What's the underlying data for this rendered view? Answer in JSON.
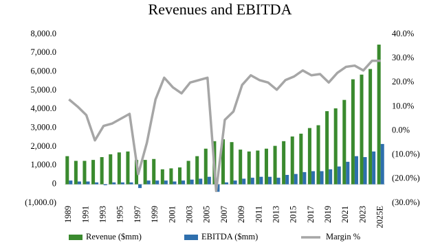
{
  "chart_data": {
    "type": "bar_line",
    "title": "Revenues and EBITDA",
    "categories": [
      "1989",
      null,
      "1991",
      null,
      "1993",
      null,
      "1995",
      null,
      "1997",
      null,
      "1999",
      null,
      "2001",
      null,
      "2003",
      null,
      "2005",
      null,
      "2007",
      null,
      "2009",
      null,
      "2011",
      null,
      "2013",
      null,
      "2015",
      null,
      "2017",
      null,
      "2019",
      null,
      "2021",
      null,
      "2023",
      null,
      "2025E"
    ],
    "series": [
      {
        "name": "Revenue ($mm)",
        "type": "bar",
        "color": "#3a8a2e",
        "values": [
          1500,
          1250,
          1250,
          1300,
          1450,
          1600,
          1700,
          1750,
          1300,
          1300,
          1350,
          800,
          850,
          900,
          1250,
          1500,
          1900,
          2300,
          2400,
          2250,
          1850,
          1750,
          1800,
          1900,
          2050,
          2300,
          2550,
          2700,
          3000,
          3150,
          3900,
          4050,
          4500,
          5600,
          5850,
          6150,
          7450
        ]
      },
      {
        "name": "EBITDA ($mm)",
        "type": "bar",
        "color": "#2e6fad",
        "values": [
          200,
          150,
          150,
          100,
          -50,
          100,
          100,
          100,
          -200,
          200,
          200,
          200,
          150,
          200,
          250,
          300,
          400,
          -400,
          100,
          200,
          300,
          350,
          400,
          400,
          350,
          500,
          550,
          650,
          700,
          700,
          800,
          950,
          1200,
          1500,
          1450,
          1750,
          2150
        ]
      },
      {
        "name": "Margin %",
        "type": "line",
        "axis": "y2",
        "color": "#a6a6a6",
        "values": [
          13,
          10,
          6.5,
          -4,
          2,
          3,
          5,
          7,
          -18,
          -5,
          13,
          22,
          18,
          15.5,
          20,
          21,
          22,
          -25,
          4.5,
          8,
          19,
          23,
          21,
          20,
          17,
          21,
          22.5,
          25,
          23,
          23.5,
          20,
          24,
          26.5,
          27,
          25,
          29,
          29
        ]
      }
    ],
    "ylim": [
      -1000,
      8000
    ],
    "yticks": [
      {
        "value": -1000,
        "label": "(1,000.0)"
      },
      0,
      {
        "value": 1000,
        "label": "1,000.0"
      },
      {
        "value": 2000,
        "label": "2,000.0"
      },
      {
        "value": 3000,
        "label": "3,000.0"
      },
      {
        "value": 4000,
        "label": "4,000.0"
      },
      {
        "value": 5000,
        "label": "5,000.0"
      },
      {
        "value": 6000,
        "label": "6,000.0"
      },
      {
        "value": 7000,
        "label": "7,000.0"
      },
      {
        "value": 8000,
        "label": "8,000.0"
      }
    ],
    "y2lim": [
      -30,
      40
    ],
    "y2ticks": [
      {
        "value": -30,
        "label": "(30.0%)"
      },
      {
        "value": -20,
        "label": "(20.0%)"
      },
      {
        "value": -10,
        "label": "(10.0%)"
      },
      {
        "value": 0,
        "label": "0.0%"
      },
      {
        "value": 10,
        "label": "10.0%"
      },
      {
        "value": 20,
        "label": "20.0%"
      },
      {
        "value": 30,
        "label": "30.0%"
      },
      {
        "value": 40,
        "label": "40.0%"
      }
    ],
    "grid": false,
    "legend": "bottom"
  }
}
